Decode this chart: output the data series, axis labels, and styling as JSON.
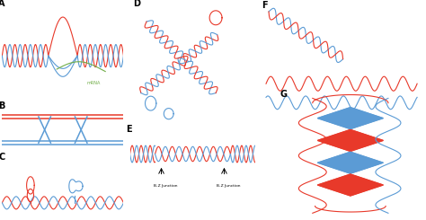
{
  "bg_color": "#ffffff",
  "red": "#e8392a",
  "blue": "#5b9bd5",
  "green": "#70ad47",
  "label_color": "#000000",
  "mrna_label": "mRNA",
  "bz_label": "B-Z Junction",
  "panel_labels": [
    "A",
    "B",
    "C",
    "D",
    "E",
    "F",
    "G"
  ],
  "label_fontsize": 7,
  "helix_lw": 0.8
}
